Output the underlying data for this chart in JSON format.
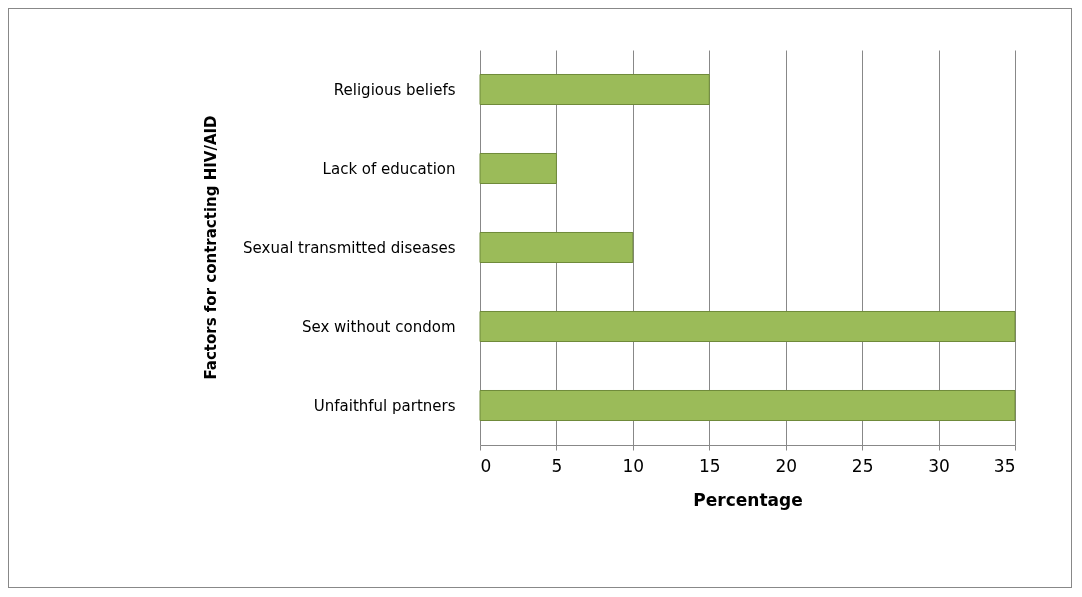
{
  "chart_data": {
    "type": "bar",
    "orientation": "horizontal",
    "xlabel": "Percentage",
    "ylabel": "Factors for contracting HIV/AID",
    "categories": [
      "Religious beliefs",
      "Lack of education",
      "Sexual transmitted diseases",
      "Sex without condom",
      "Unfaithful partners"
    ],
    "values": [
      15,
      5,
      10,
      35,
      35
    ],
    "color": "#9bbb59",
    "xlim": [
      0,
      35
    ],
    "xticks": [
      0,
      5,
      10,
      15,
      20,
      25,
      30,
      35
    ],
    "grid": "x"
  }
}
